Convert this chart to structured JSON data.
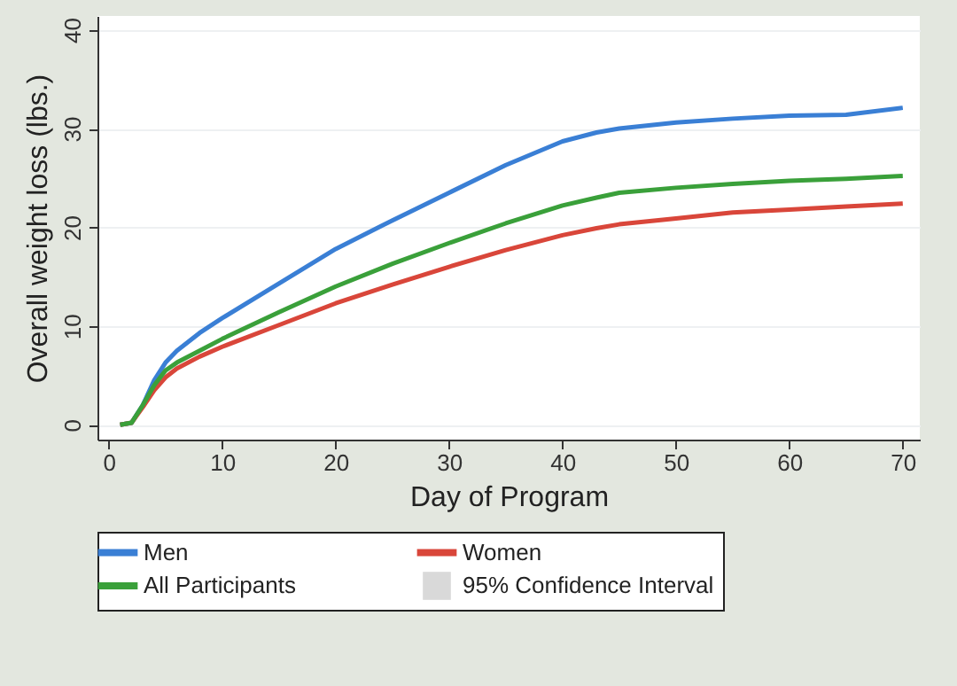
{
  "chart_data": {
    "type": "line",
    "xlabel": "Day of Program",
    "ylabel": "Overall weight loss (lbs.)",
    "x": [
      1,
      2,
      3,
      4,
      5,
      6,
      8,
      10,
      15,
      20,
      25,
      30,
      35,
      40,
      43,
      45,
      50,
      55,
      60,
      65,
      70
    ],
    "series": [
      {
        "name": "Men",
        "color": "#3a7fd5",
        "values": [
          0,
          0.2,
          2,
          4.5,
          6.3,
          7.5,
          9.3,
          10.8,
          14.3,
          17.8,
          20.7,
          23.5,
          26.3,
          28.7,
          29.6,
          30,
          30.6,
          31,
          31.3,
          31.4,
          32.1
        ]
      },
      {
        "name": "Women",
        "color": "#d9463a",
        "values": [
          0,
          0.2,
          1.8,
          3.5,
          4.8,
          5.7,
          6.9,
          7.9,
          10.1,
          12.3,
          14.2,
          16,
          17.7,
          19.2,
          19.9,
          20.3,
          20.9,
          21.5,
          21.8,
          22.1,
          22.4
        ]
      },
      {
        "name": "All Participants",
        "color": "#3aa03a",
        "values": [
          0,
          0.2,
          2,
          4,
          5.5,
          6.3,
          7.5,
          8.7,
          11.4,
          14,
          16.3,
          18.4,
          20.4,
          22.2,
          23,
          23.5,
          24,
          24.4,
          24.7,
          24.9,
          25.2
        ]
      }
    ],
    "annotations": [
      "95% Confidence Interval"
    ],
    "xlim": [
      -1,
      71.5
    ],
    "ylim": [
      -1.5,
      41.4
    ],
    "xticks": [
      0,
      10,
      20,
      30,
      40,
      50,
      60,
      70
    ],
    "yticks": [
      0,
      10,
      20,
      30,
      40
    ],
    "grid": "y",
    "legend": "bottom",
    "line_style": "solid",
    "marker": "none"
  }
}
